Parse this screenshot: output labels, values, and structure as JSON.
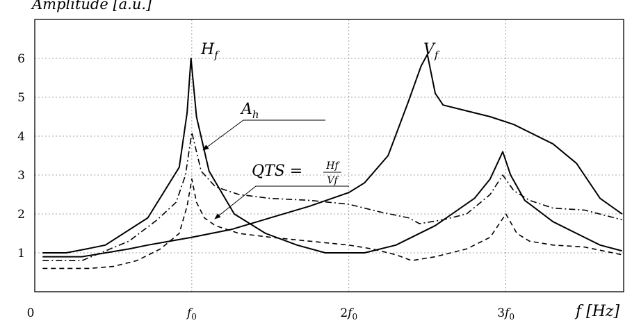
{
  "chart_data": {
    "type": "line",
    "ylabel": "Amplitude [a.u.]",
    "xlabel": "f [Hz]",
    "x_ticks": [
      {
        "x": 0,
        "label": "0"
      },
      {
        "x": 1,
        "label": "f0"
      },
      {
        "x": 2,
        "label": "2f0"
      },
      {
        "x": 3,
        "label": "3f0"
      }
    ],
    "y_ticks": [
      1,
      2,
      3,
      4,
      5,
      6
    ],
    "xlim": [
      0,
      3.75
    ],
    "ylim": [
      0,
      7.0
    ],
    "grid": true,
    "series": [
      {
        "name": "Hf",
        "style": "solid",
        "points": [
          [
            0.05,
            1.0
          ],
          [
            0.2,
            1.0
          ],
          [
            0.33,
            1.1
          ],
          [
            0.45,
            1.2
          ],
          [
            0.72,
            1.9
          ],
          [
            0.92,
            3.2
          ],
          [
            0.97,
            4.6
          ],
          [
            0.995,
            6.0
          ],
          [
            1.03,
            4.5
          ],
          [
            1.11,
            3.1
          ],
          [
            1.27,
            2.0
          ],
          [
            1.47,
            1.5
          ],
          [
            1.67,
            1.2
          ],
          [
            1.85,
            1.0
          ],
          [
            2.1,
            1.0
          ],
          [
            2.3,
            1.2
          ],
          [
            2.55,
            1.7
          ],
          [
            2.8,
            2.4
          ],
          [
            2.9,
            2.9
          ],
          [
            2.98,
            3.6
          ],
          [
            3.03,
            3.0
          ],
          [
            3.12,
            2.35
          ],
          [
            3.3,
            1.8
          ],
          [
            3.5,
            1.4
          ],
          [
            3.6,
            1.2
          ],
          [
            3.74,
            1.05
          ]
        ]
      },
      {
        "name": "Vf",
        "style": "solid",
        "points": [
          [
            0.05,
            0.9
          ],
          [
            0.3,
            0.9
          ],
          [
            0.6,
            1.1
          ],
          [
            0.72,
            1.2
          ],
          [
            1.0,
            1.4
          ],
          [
            1.25,
            1.6
          ],
          [
            1.5,
            1.9
          ],
          [
            1.75,
            2.2
          ],
          [
            2.0,
            2.55
          ],
          [
            2.1,
            2.8
          ],
          [
            2.25,
            3.5
          ],
          [
            2.38,
            4.9
          ],
          [
            2.46,
            5.8
          ],
          [
            2.5,
            6.1
          ],
          [
            2.55,
            5.1
          ],
          [
            2.6,
            4.8
          ],
          [
            2.75,
            4.65
          ],
          [
            2.9,
            4.5
          ],
          [
            3.05,
            4.3
          ],
          [
            3.15,
            4.1
          ],
          [
            3.3,
            3.8
          ],
          [
            3.45,
            3.3
          ],
          [
            3.6,
            2.4
          ],
          [
            3.74,
            2.0
          ]
        ]
      },
      {
        "name": "Ah",
        "style": "dashdot",
        "points": [
          [
            0.05,
            0.8
          ],
          [
            0.3,
            0.8
          ],
          [
            0.6,
            1.3
          ],
          [
            0.78,
            1.85
          ],
          [
            0.9,
            2.3
          ],
          [
            0.96,
            3.0
          ],
          [
            1.0,
            4.1
          ],
          [
            1.03,
            3.6
          ],
          [
            1.06,
            3.1
          ],
          [
            1.15,
            2.7
          ],
          [
            1.3,
            2.5
          ],
          [
            1.5,
            2.4
          ],
          [
            1.75,
            2.35
          ],
          [
            2.0,
            2.25
          ],
          [
            2.2,
            2.05
          ],
          [
            2.38,
            1.9
          ],
          [
            2.45,
            1.75
          ],
          [
            2.6,
            1.85
          ],
          [
            2.75,
            2.0
          ],
          [
            2.9,
            2.5
          ],
          [
            2.98,
            3.0
          ],
          [
            3.05,
            2.6
          ],
          [
            3.15,
            2.35
          ],
          [
            3.3,
            2.15
          ],
          [
            3.5,
            2.1
          ],
          [
            3.74,
            1.85
          ]
        ]
      },
      {
        "name": "QTS",
        "style": "dashed",
        "points": [
          [
            0.05,
            0.6
          ],
          [
            0.35,
            0.6
          ],
          [
            0.5,
            0.65
          ],
          [
            0.65,
            0.8
          ],
          [
            0.8,
            1.1
          ],
          [
            0.92,
            1.5
          ],
          [
            0.97,
            2.2
          ],
          [
            1.0,
            2.9
          ],
          [
            1.03,
            2.3
          ],
          [
            1.08,
            1.9
          ],
          [
            1.15,
            1.7
          ],
          [
            1.3,
            1.5
          ],
          [
            1.5,
            1.4
          ],
          [
            1.75,
            1.3
          ],
          [
            2.0,
            1.2
          ],
          [
            2.15,
            1.1
          ],
          [
            2.3,
            0.95
          ],
          [
            2.4,
            0.8
          ],
          [
            2.55,
            0.9
          ],
          [
            2.75,
            1.1
          ],
          [
            2.9,
            1.4
          ],
          [
            2.95,
            1.7
          ],
          [
            3.0,
            2.0
          ],
          [
            3.07,
            1.5
          ],
          [
            3.15,
            1.3
          ],
          [
            3.3,
            1.2
          ],
          [
            3.5,
            1.15
          ],
          [
            3.74,
            0.95
          ]
        ]
      }
    ],
    "annotations": [
      {
        "name": "Hf",
        "base": "H",
        "sub": "f"
      },
      {
        "name": "Vf",
        "base": "V",
        "sub": "f"
      },
      {
        "name": "Ah",
        "base": "A",
        "sub": "h"
      },
      {
        "name": "QTS",
        "text": "QTS =",
        "num": "Hf",
        "den": "Vf"
      }
    ]
  }
}
